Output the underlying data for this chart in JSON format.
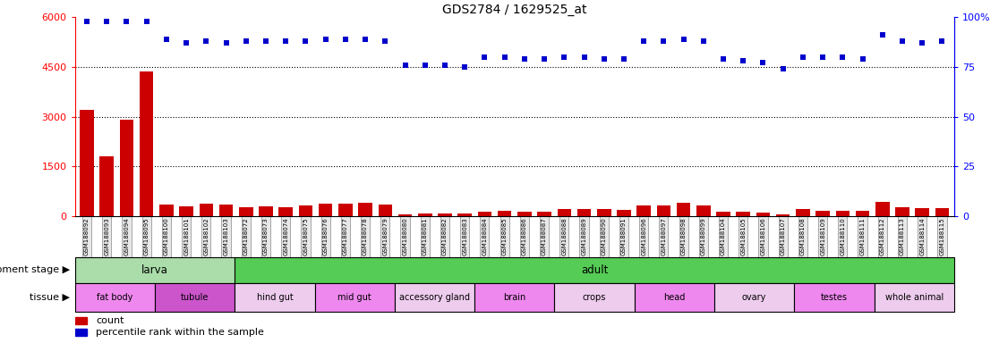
{
  "title": "GDS2784 / 1629525_at",
  "samples": [
    "GSM188092",
    "GSM188093",
    "GSM188094",
    "GSM188095",
    "GSM188100",
    "GSM188101",
    "GSM188102",
    "GSM188103",
    "GSM188072",
    "GSM188073",
    "GSM188074",
    "GSM188075",
    "GSM188076",
    "GSM188077",
    "GSM188078",
    "GSM188079",
    "GSM188080",
    "GSM188081",
    "GSM188082",
    "GSM188083",
    "GSM188084",
    "GSM188085",
    "GSM188086",
    "GSM188087",
    "GSM188088",
    "GSM188089",
    "GSM188090",
    "GSM188091",
    "GSM188096",
    "GSM188097",
    "GSM188098",
    "GSM188099",
    "GSM188104",
    "GSM188105",
    "GSM188106",
    "GSM188107",
    "GSM188108",
    "GSM188109",
    "GSM188110",
    "GSM188111",
    "GSM188112",
    "GSM188113",
    "GSM188114",
    "GSM188115"
  ],
  "counts": [
    3200,
    1800,
    2900,
    4350,
    350,
    300,
    380,
    350,
    280,
    300,
    280,
    320,
    380,
    380,
    410,
    350,
    60,
    70,
    75,
    70,
    130,
    150,
    130,
    120,
    200,
    200,
    220,
    180,
    320,
    320,
    390,
    320,
    130,
    130,
    100,
    60,
    200,
    160,
    170,
    170,
    420,
    270,
    250,
    250
  ],
  "percentile": [
    98,
    98,
    98,
    98,
    89,
    87,
    88,
    87,
    88,
    88,
    88,
    88,
    89,
    89,
    89,
    88,
    76,
    76,
    76,
    75,
    80,
    80,
    79,
    79,
    80,
    80,
    79,
    79,
    88,
    88,
    89,
    88,
    79,
    78,
    77,
    74,
    80,
    80,
    80,
    79,
    91,
    88,
    87,
    88
  ],
  "development_stages": [
    {
      "label": "larva",
      "start": 0,
      "end": 8,
      "color": "#aaddaa"
    },
    {
      "label": "adult",
      "start": 8,
      "end": 44,
      "color": "#55cc55"
    }
  ],
  "tissues": [
    {
      "label": "fat body",
      "start": 0,
      "end": 4,
      "color": "#ee88ee"
    },
    {
      "label": "tubule",
      "start": 4,
      "end": 8,
      "color": "#cc55cc"
    },
    {
      "label": "hind gut",
      "start": 8,
      "end": 12,
      "color": "#eeccee"
    },
    {
      "label": "mid gut",
      "start": 12,
      "end": 16,
      "color": "#ee88ee"
    },
    {
      "label": "accessory gland",
      "start": 16,
      "end": 20,
      "color": "#eeccee"
    },
    {
      "label": "brain",
      "start": 20,
      "end": 24,
      "color": "#ee88ee"
    },
    {
      "label": "crops",
      "start": 24,
      "end": 28,
      "color": "#eeccee"
    },
    {
      "label": "head",
      "start": 28,
      "end": 32,
      "color": "#ee88ee"
    },
    {
      "label": "ovary",
      "start": 32,
      "end": 36,
      "color": "#eeccee"
    },
    {
      "label": "testes",
      "start": 36,
      "end": 40,
      "color": "#ee88ee"
    },
    {
      "label": "whole animal",
      "start": 40,
      "end": 44,
      "color": "#eeccee"
    }
  ],
  "bar_color": "#CC0000",
  "dot_color": "#0000CC",
  "left_ylim": [
    0,
    6000
  ],
  "left_yticks": [
    0,
    1500,
    3000,
    4500,
    6000
  ],
  "right_ylim": [
    0,
    100
  ],
  "right_yticks": [
    0,
    25,
    50,
    75,
    100
  ],
  "grid_values": [
    1500,
    3000,
    4500
  ],
  "background_color": "#ffffff"
}
